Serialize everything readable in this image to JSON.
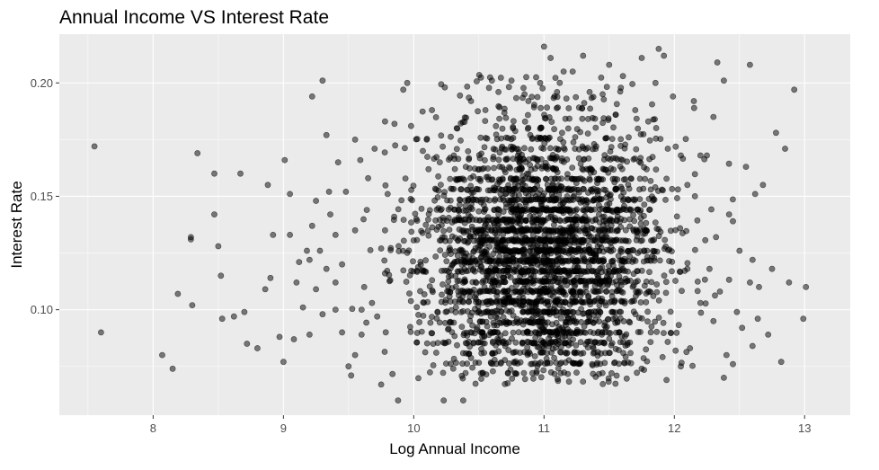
{
  "chart_data": {
    "type": "scatter",
    "title": "Annual Income VS Interest Rate",
    "xlabel": "Log Annual Income",
    "ylabel": "Interest Rate",
    "xlim": [
      7.28,
      13.35
    ],
    "ylim": [
      0.0535,
      0.2215
    ],
    "x_ticks": [
      8,
      9,
      10,
      11,
      12,
      13
    ],
    "y_ticks": [
      0.1,
      0.15,
      0.2
    ],
    "x_tick_labels": [
      "8",
      "9",
      "10",
      "11",
      "12",
      "13"
    ],
    "y_tick_labels": [
      "0.10",
      "0.15",
      "0.20"
    ],
    "grid": true,
    "background_color": "#ebebeb",
    "grid_color": "#ffffff",
    "point_color": "#000000",
    "point_alpha": 0.5,
    "legend": "none",
    "points": [
      [
        7.55,
        0.172
      ],
      [
        7.6,
        0.09
      ],
      [
        8.07,
        0.08
      ],
      [
        8.15,
        0.074
      ],
      [
        8.19,
        0.107
      ],
      [
        8.29,
        0.131
      ],
      [
        8.29,
        0.132
      ],
      [
        8.3,
        0.102
      ],
      [
        8.34,
        0.169
      ],
      [
        8.47,
        0.142
      ],
      [
        8.47,
        0.16
      ],
      [
        8.5,
        0.128
      ],
      [
        8.52,
        0.115
      ],
      [
        8.53,
        0.096
      ],
      [
        8.62,
        0.097
      ],
      [
        8.67,
        0.16
      ],
      [
        8.7,
        0.099
      ],
      [
        8.72,
        0.085
      ],
      [
        8.8,
        0.083
      ],
      [
        8.86,
        0.109
      ],
      [
        8.88,
        0.155
      ],
      [
        8.9,
        0.114
      ],
      [
        8.92,
        0.133
      ],
      [
        8.97,
        0.088
      ],
      [
        9.0,
        0.077
      ],
      [
        9.01,
        0.166
      ],
      [
        9.05,
        0.151
      ],
      [
        9.08,
        0.087
      ],
      [
        9.15,
        0.101
      ],
      [
        9.2,
        0.089
      ],
      [
        9.2,
        0.122
      ],
      [
        9.22,
        0.194
      ],
      [
        9.25,
        0.148
      ],
      [
        9.3,
        0.201
      ],
      [
        9.33,
        0.177
      ],
      [
        9.4,
        0.133
      ],
      [
        9.45,
        0.12
      ],
      [
        9.52,
        0.071
      ],
      [
        9.55,
        0.175
      ],
      [
        9.59,
        0.166
      ],
      [
        9.64,
        0.144
      ],
      [
        9.7,
        0.171
      ],
      [
        9.75,
        0.067
      ],
      [
        9.78,
        0.183
      ],
      [
        9.82,
        0.113
      ],
      [
        9.88,
        0.06
      ],
      [
        9.92,
        0.197
      ],
      [
        9.95,
        0.2
      ],
      [
        9.98,
        0.181
      ],
      [
        10.02,
        0.14
      ],
      [
        10.07,
        0.17
      ],
      [
        10.1,
        0.175
      ],
      [
        10.14,
        0.188
      ],
      [
        10.2,
        0.165
      ],
      [
        10.23,
        0.06
      ],
      [
        10.28,
        0.167
      ],
      [
        10.33,
        0.18
      ],
      [
        10.38,
        0.06
      ],
      [
        10.4,
        0.163
      ],
      [
        10.44,
        0.192
      ],
      [
        10.5,
        0.153
      ],
      [
        10.55,
        0.188
      ],
      [
        10.6,
        0.201
      ],
      [
        10.65,
        0.196
      ],
      [
        10.7,
        0.12
      ],
      [
        10.75,
        0.201
      ],
      [
        10.8,
        0.168
      ],
      [
        10.85,
        0.195
      ],
      [
        10.88,
        0.192
      ],
      [
        10.92,
        0.141
      ],
      [
        10.97,
        0.2
      ],
      [
        11.0,
        0.216
      ],
      [
        11.05,
        0.211
      ],
      [
        11.1,
        0.196
      ],
      [
        11.15,
        0.205
      ],
      [
        11.22,
        0.205
      ],
      [
        11.25,
        0.141
      ],
      [
        11.3,
        0.212
      ],
      [
        11.35,
        0.196
      ],
      [
        11.4,
        0.172
      ],
      [
        11.45,
        0.195
      ],
      [
        11.5,
        0.208
      ],
      [
        11.55,
        0.186
      ],
      [
        11.6,
        0.162
      ],
      [
        11.65,
        0.176
      ],
      [
        11.7,
        0.188
      ],
      [
        11.75,
        0.211
      ],
      [
        11.8,
        0.183
      ],
      [
        11.85,
        0.184
      ],
      [
        11.88,
        0.215
      ],
      [
        11.92,
        0.212
      ],
      [
        11.95,
        0.171
      ],
      [
        11.99,
        0.194
      ],
      [
        12.05,
        0.168
      ],
      [
        12.1,
        0.155
      ],
      [
        12.15,
        0.192
      ],
      [
        12.2,
        0.168
      ],
      [
        12.25,
        0.168
      ],
      [
        12.3,
        0.185
      ],
      [
        12.33,
        0.209
      ],
      [
        12.38,
        0.201
      ],
      [
        12.42,
        0.142
      ],
      [
        12.45,
        0.076
      ],
      [
        12.5,
        0.126
      ],
      [
        12.55,
        0.163
      ],
      [
        12.58,
        0.208
      ],
      [
        12.62,
        0.151
      ],
      [
        12.64,
        0.096
      ],
      [
        12.68,
        0.155
      ],
      [
        12.72,
        0.089
      ],
      [
        12.75,
        0.118
      ],
      [
        12.78,
        0.178
      ],
      [
        12.82,
        0.077
      ],
      [
        12.85,
        0.171
      ],
      [
        12.88,
        0.112
      ],
      [
        12.92,
        0.197
      ],
      [
        12.99,
        0.096
      ],
      [
        13.01,
        0.11
      ],
      [
        12.4,
        0.08
      ],
      [
        12.3,
        0.095
      ],
      [
        12.2,
        0.103
      ],
      [
        12.1,
        0.118
      ],
      [
        12.12,
        0.083
      ],
      [
        11.94,
        0.069
      ],
      [
        12.05,
        0.075
      ],
      [
        12.32,
        0.132
      ],
      [
        12.48,
        0.099
      ],
      [
        12.6,
        0.122
      ],
      [
        12.35,
        0.108
      ],
      [
        12.27,
        0.118
      ],
      [
        12.38,
        0.07
      ],
      [
        12.52,
        0.092
      ],
      [
        12.45,
        0.139
      ],
      [
        12.58,
        0.112
      ],
      [
        12.65,
        0.11
      ],
      [
        12.6,
        0.084
      ],
      [
        9.4,
        0.1
      ],
      [
        9.45,
        0.09
      ],
      [
        9.5,
        0.075
      ],
      [
        9.55,
        0.08
      ],
      [
        9.6,
        0.089
      ],
      [
        9.6,
        0.1
      ],
      [
        9.62,
        0.11
      ],
      [
        9.68,
        0.103
      ],
      [
        9.72,
        0.097
      ],
      [
        9.75,
        0.127
      ],
      [
        9.78,
        0.135
      ],
      [
        9.8,
        0.151
      ],
      [
        9.85,
        0.141
      ],
      [
        9.4,
        0.112
      ],
      [
        9.36,
        0.142
      ],
      [
        9.48,
        0.152
      ],
      [
        9.55,
        0.135
      ],
      [
        9.65,
        0.158
      ],
      [
        9.42,
        0.165
      ],
      [
        9.35,
        0.152
      ],
      [
        9.22,
        0.137
      ],
      [
        9.28,
        0.126
      ],
      [
        9.33,
        0.118
      ],
      [
        9.25,
        0.109
      ],
      [
        9.18,
        0.126
      ],
      [
        9.12,
        0.121
      ],
      [
        9.3,
        0.098
      ],
      [
        9.1,
        0.112
      ],
      [
        9.05,
        0.133
      ]
    ]
  }
}
